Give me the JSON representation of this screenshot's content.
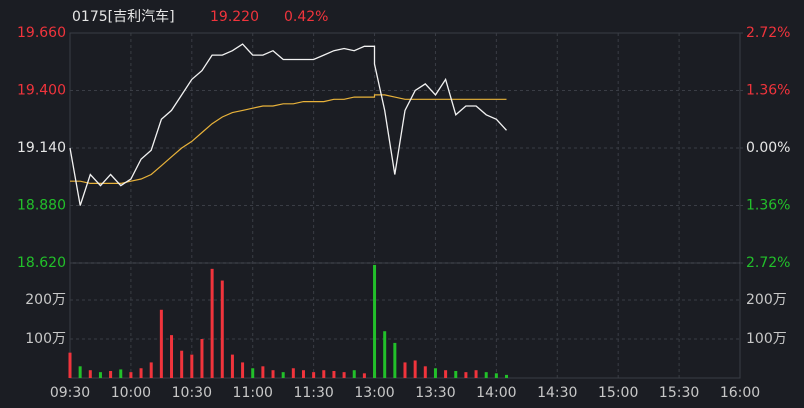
{
  "chart_data": {
    "type": "intraday",
    "title": "0175[吉利汽车]",
    "last_price": {
      "value": 19.22,
      "label": "19.220"
    },
    "change": {
      "value": 0.42,
      "label": "0.42%"
    },
    "x": [
      "09:30",
      "09:35",
      "09:40",
      "09:45",
      "09:50",
      "09:55",
      "10:00",
      "10:05",
      "10:10",
      "10:15",
      "10:20",
      "10:25",
      "10:30",
      "10:35",
      "10:40",
      "10:45",
      "10:50",
      "10:55",
      "11:00",
      "11:05",
      "11:10",
      "11:15",
      "11:20",
      "11:25",
      "11:30",
      "11:35",
      "11:40",
      "11:45",
      "11:50",
      "11:55",
      "12:00",
      "13:00",
      "13:05",
      "13:10",
      "13:15",
      "13:20",
      "13:25",
      "13:30",
      "13:35",
      "13:40",
      "13:45",
      "13:50",
      "13:55",
      "14:00",
      "14:05"
    ],
    "series": [
      {
        "name": "price",
        "color": "#f2f2f2",
        "values": [
          19.14,
          18.88,
          19.02,
          18.97,
          19.02,
          18.97,
          19.0,
          19.09,
          19.13,
          19.27,
          19.31,
          19.38,
          19.45,
          19.49,
          19.56,
          19.56,
          19.58,
          19.61,
          19.56,
          19.56,
          19.58,
          19.54,
          19.54,
          19.54,
          19.54,
          19.56,
          19.58,
          19.59,
          19.58,
          19.6,
          19.6,
          19.52,
          19.31,
          19.02,
          19.31,
          19.4,
          19.43,
          19.38,
          19.45,
          19.29,
          19.33,
          19.33,
          19.29,
          19.27,
          19.22
        ]
      },
      {
        "name": "average",
        "color": "#e8b23a",
        "values": [
          18.99,
          18.99,
          18.98,
          18.98,
          18.98,
          18.98,
          18.99,
          19.0,
          19.02,
          19.06,
          19.1,
          19.14,
          19.17,
          19.21,
          19.25,
          19.28,
          19.3,
          19.31,
          19.32,
          19.33,
          19.33,
          19.34,
          19.34,
          19.35,
          19.35,
          19.35,
          19.36,
          19.36,
          19.37,
          19.37,
          19.37,
          19.38,
          19.38,
          19.37,
          19.36,
          19.36,
          19.36,
          19.36,
          19.36,
          19.36,
          19.36,
          19.36,
          19.36,
          19.36,
          19.36
        ]
      },
      {
        "name": "volume",
        "axis": "volume",
        "values": [
          65,
          30,
          20,
          15,
          18,
          22,
          15,
          25,
          40,
          175,
          110,
          70,
          60,
          100,
          280,
          250,
          60,
          40,
          25,
          30,
          20,
          15,
          25,
          20,
          15,
          20,
          18,
          15,
          20,
          12,
          15,
          290,
          120,
          90,
          40,
          45,
          30,
          25,
          20,
          18,
          15,
          20,
          15,
          12,
          8
        ]
      }
    ],
    "up_color": "#f0343c",
    "down_color": "#22c02a",
    "flat_color": "#e6e6e6",
    "ylim": [
      18.62,
      19.66
    ],
    "yticks": [
      {
        "value": 19.66,
        "label": "19.660"
      },
      {
        "value": 19.4,
        "label": "19.400"
      },
      {
        "value": 19.14,
        "label": "19.140"
      },
      {
        "value": 18.88,
        "label": "18.880"
      },
      {
        "value": 18.62,
        "label": "18.620"
      }
    ],
    "y2lim": [
      -2.72,
      2.72
    ],
    "y2ticks": [
      {
        "value": 2.72,
        "label": "2.72%"
      },
      {
        "value": 1.36,
        "label": "1.36%"
      },
      {
        "value": 0,
        "label": "0.00%"
      },
      {
        "value": -1.36,
        "label": "1.36%"
      },
      {
        "value": -2.72,
        "label": "2.72%"
      }
    ],
    "volume_lim": [
      0,
      295
    ],
    "volume_ticks": [
      {
        "value": 200,
        "label": "200万"
      },
      {
        "value": 100,
        "label": "100万"
      }
    ],
    "xticks": [
      "09:30",
      "10:00",
      "10:30",
      "11:00",
      "11:30",
      "13:00",
      "13:30",
      "14:00",
      "14:30",
      "15:00",
      "15:30",
      "16:00"
    ],
    "grid": true
  }
}
